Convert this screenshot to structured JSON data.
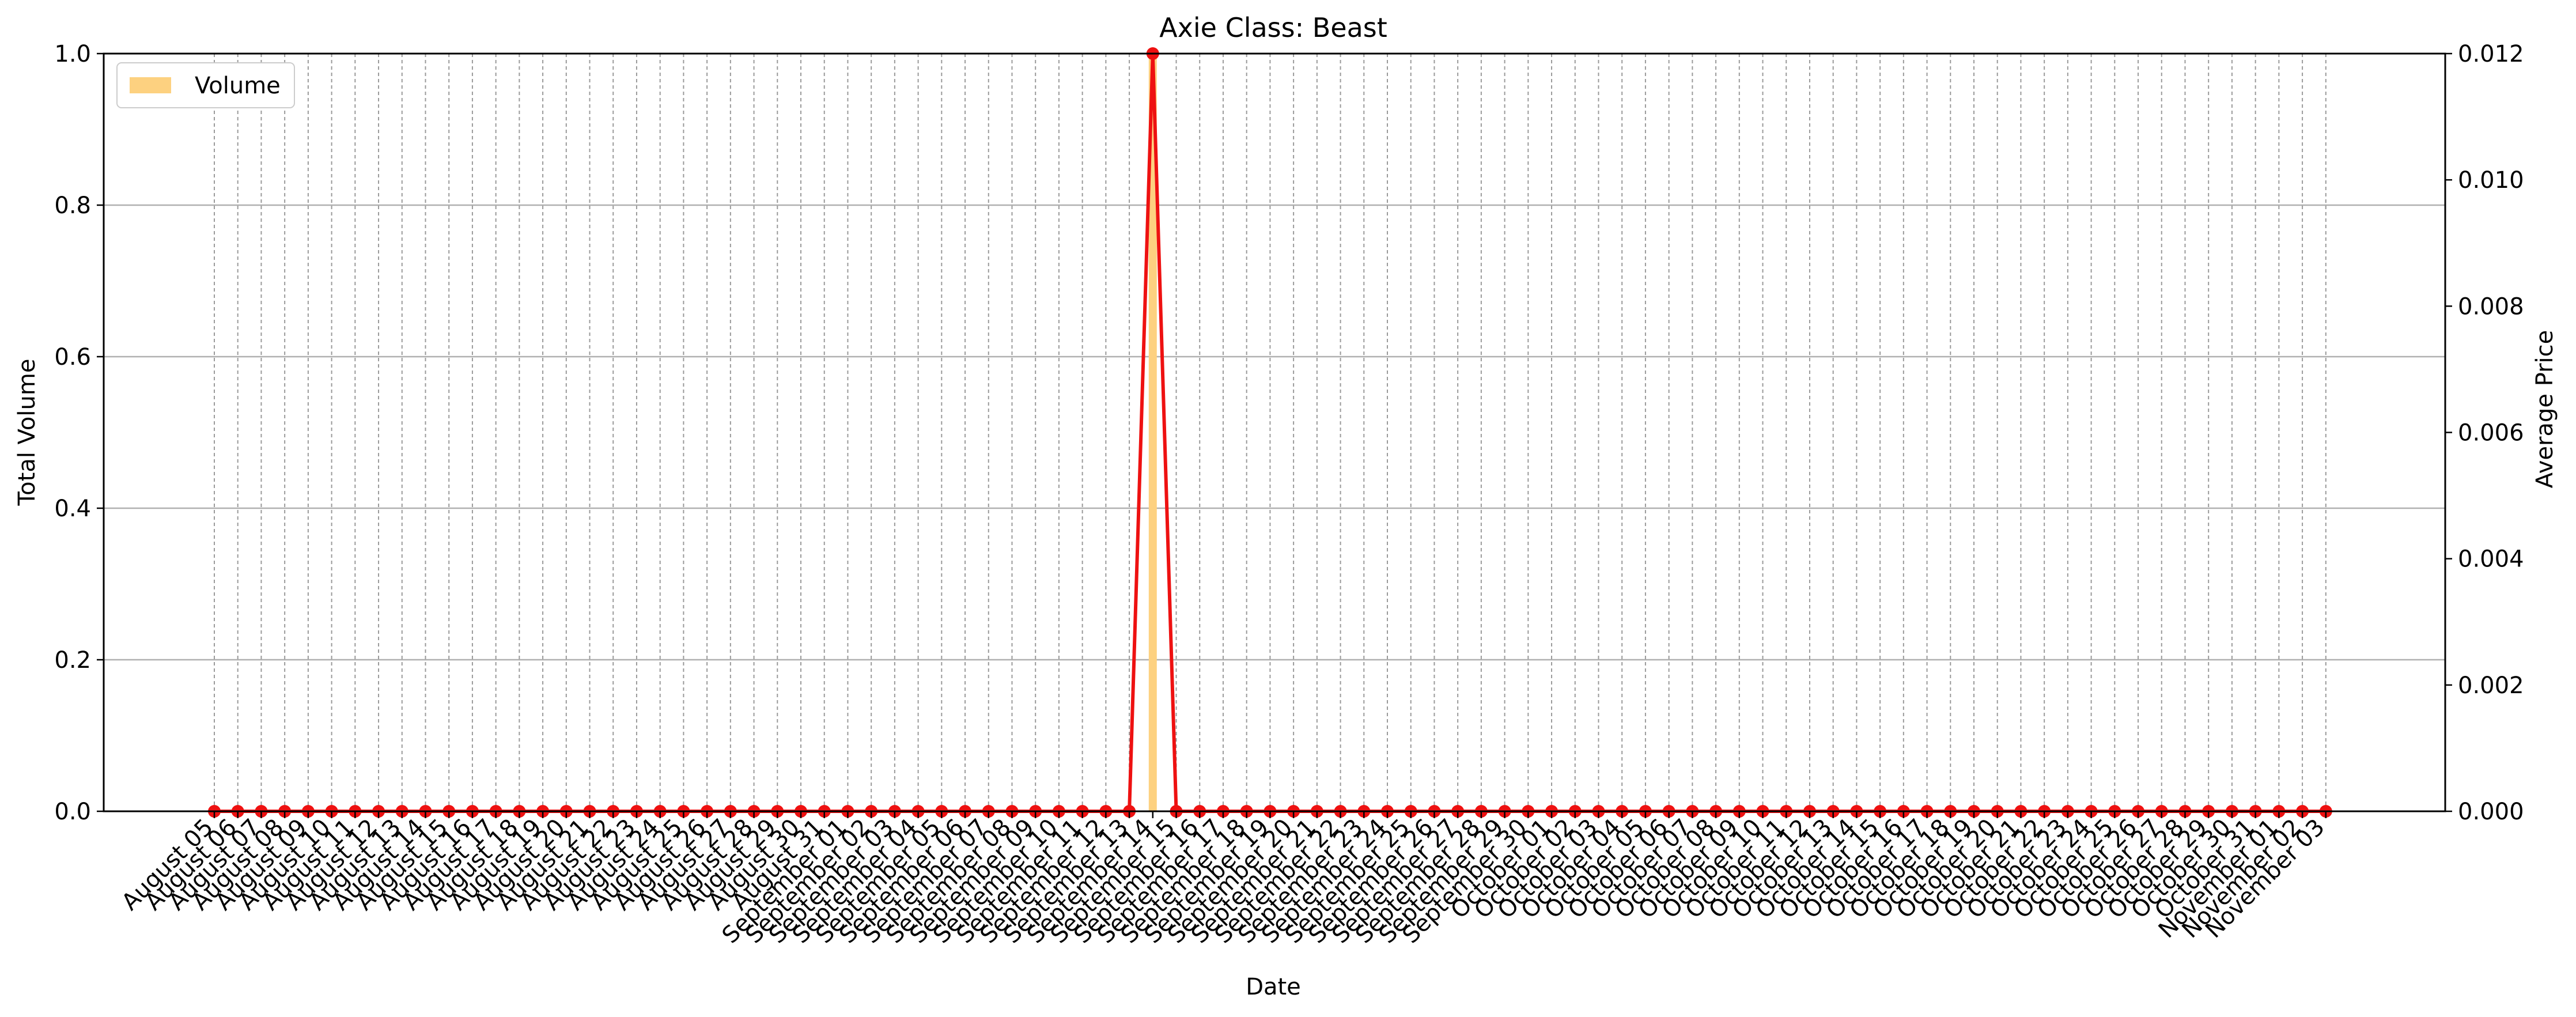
{
  "chart_data": {
    "type": "bar",
    "title": "Axie Class: Beast",
    "xlabel": "Date",
    "ylabel": "Total Volume",
    "ylabel_right": "Average Price",
    "ylim": [
      0,
      1.0
    ],
    "ylim_right": [
      0,
      0.012
    ],
    "yticks": [
      "0.0",
      "0.2",
      "0.4",
      "0.6",
      "0.8",
      "1.0"
    ],
    "yticks_right": [
      "0.000",
      "0.002",
      "0.004",
      "0.006",
      "0.008",
      "0.010",
      "0.012"
    ],
    "legend": {
      "label": "Volume",
      "placement": "top-left"
    },
    "grid": true,
    "colors": {
      "bar": "#fdd180",
      "line": "#ee1111",
      "grid": "#b0b0b0",
      "frame": "#000000"
    },
    "categories": [
      "August 05",
      "August 06",
      "August 07",
      "August 08",
      "August 09",
      "August 10",
      "August 11",
      "August 12",
      "August 13",
      "August 14",
      "August 15",
      "August 16",
      "August 17",
      "August 18",
      "August 19",
      "August 20",
      "August 21",
      "August 22",
      "August 23",
      "August 24",
      "August 25",
      "August 26",
      "August 27",
      "August 28",
      "August 29",
      "August 30",
      "August 31",
      "September 01",
      "September 02",
      "September 03",
      "September 04",
      "September 05",
      "September 06",
      "September 07",
      "September 08",
      "September 09",
      "September 10",
      "September 11",
      "September 12",
      "September 13",
      "September 14",
      "September 15",
      "September 16",
      "September 17",
      "September 18",
      "September 19",
      "September 20",
      "September 21",
      "September 22",
      "September 23",
      "September 24",
      "September 25",
      "September 26",
      "September 27",
      "September 28",
      "September 29",
      "September 30",
      "October 01",
      "October 02",
      "October 03",
      "October 04",
      "October 05",
      "October 06",
      "October 07",
      "October 08",
      "October 09",
      "October 10",
      "October 11",
      "October 12",
      "October 13",
      "October 14",
      "October 15",
      "October 16",
      "October 17",
      "October 18",
      "October 19",
      "October 20",
      "October 21",
      "October 22",
      "October 23",
      "October 24",
      "October 25",
      "October 26",
      "October 27",
      "October 28",
      "October 29",
      "October 30",
      "October 31",
      "November 01",
      "November 02",
      "November 03"
    ],
    "series": [
      {
        "name": "Volume",
        "axis": "left",
        "kind": "bar",
        "values": [
          0,
          0,
          0,
          0,
          0,
          0,
          0,
          0,
          0,
          0,
          0,
          0,
          0,
          0,
          0,
          0,
          0,
          0,
          0,
          0,
          0,
          0,
          0,
          0,
          0,
          0,
          0,
          0,
          0,
          0,
          0,
          0,
          0,
          0,
          0,
          0,
          0,
          0,
          0,
          0,
          1,
          0,
          0,
          0,
          0,
          0,
          0,
          0,
          0,
          0,
          0,
          0,
          0,
          0,
          0,
          0,
          0,
          0,
          0,
          0,
          0,
          0,
          0,
          0,
          0,
          0,
          0,
          0,
          0,
          0,
          0,
          0,
          0,
          0,
          0,
          0,
          0,
          0,
          0,
          0,
          0,
          0,
          0,
          0,
          0,
          0,
          0,
          0,
          0,
          0,
          0
        ]
      },
      {
        "axis": "right",
        "kind": "line",
        "values": [
          0,
          0,
          0,
          0,
          0,
          0,
          0,
          0,
          0,
          0,
          0,
          0,
          0,
          0,
          0,
          0,
          0,
          0,
          0,
          0,
          0,
          0,
          0,
          0,
          0,
          0,
          0,
          0,
          0,
          0,
          0,
          0,
          0,
          0,
          0,
          0,
          0,
          0,
          0,
          0,
          0.012,
          0,
          0,
          0,
          0,
          0,
          0,
          0,
          0,
          0,
          0,
          0,
          0,
          0,
          0,
          0,
          0,
          0,
          0,
          0,
          0,
          0,
          0,
          0,
          0,
          0,
          0,
          0,
          0,
          0,
          0,
          0,
          0,
          0,
          0,
          0,
          0,
          0,
          0,
          0,
          0,
          0,
          0,
          0,
          0,
          0,
          0,
          0,
          0,
          0,
          0
        ]
      }
    ]
  }
}
